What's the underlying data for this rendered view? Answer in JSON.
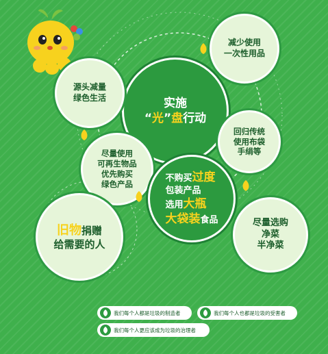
{
  "center": {
    "line1": "实施",
    "quote_open": "“",
    "word": "光",
    "quote_close": "”",
    "char_hl": "盘",
    "rest": "行动"
  },
  "bubbles": {
    "reduce_disposable": {
      "line1": "减少使用",
      "line2": "一次性用品"
    },
    "source_reduction": {
      "line1": "源头减量",
      "line2": "绿色生活"
    },
    "traditional": {
      "line1": "回归传统",
      "line2": "使用布袋",
      "line3": "手绢等"
    },
    "renewable": {
      "line1": "尽量使用",
      "line2": "可再生物品",
      "line3": "优先购买",
      "line4": "绿色产品"
    },
    "packaging": {
      "l1_pre": "不购买",
      "l1_hl": "过度",
      "line2": "包装产品",
      "l3_pre": "选用",
      "l3_hl": "大瓶",
      "l4_hl": "大袋装",
      "l4_post": "食品"
    },
    "donate": {
      "hl": "旧物",
      "l1_post": "捐赠",
      "line2": "给需要的人"
    },
    "clean_veg": {
      "line1": "尽量选购",
      "line2": "净菜",
      "line3": "半净菜"
    }
  },
  "badges": {
    "b1": "我们每个人都是垃圾的制造者",
    "b2": "我们每个人也都是垃圾的受害者",
    "b3": "我们每个人更应该成为垃圾的治理者"
  },
  "colors": {
    "background": "#3fb04c",
    "light_bubble": "#e6f5d9",
    "dark_bubble": "#2c9a3f",
    "highlight": "#f7d21e",
    "mascot": "#f7d21e"
  },
  "icons": [
    "pineapple-mascot",
    "green-leaf-icon",
    "yellow-leaf-icon"
  ]
}
